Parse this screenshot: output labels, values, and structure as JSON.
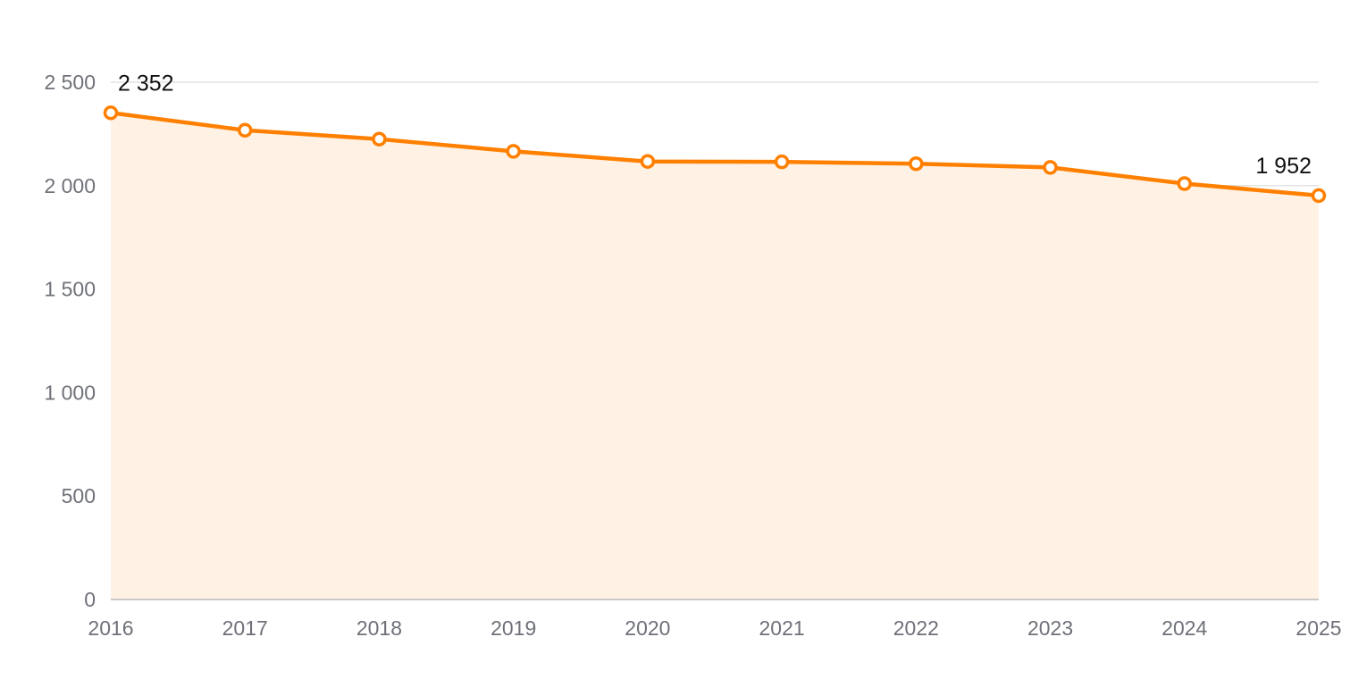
{
  "chart_data": {
    "type": "area",
    "x": [
      "2016",
      "2017",
      "2018",
      "2019",
      "2020",
      "2021",
      "2022",
      "2023",
      "2024",
      "2025"
    ],
    "series": [
      {
        "values": [
          2352,
          2268,
          2225,
          2166,
          2117,
          2115,
          2106,
          2088,
          2010,
          1952
        ]
      }
    ],
    "y_ticks": [
      {
        "value": 0,
        "label": "0"
      },
      {
        "value": 500,
        "label": "500"
      },
      {
        "value": 1000,
        "label": "1 000"
      },
      {
        "value": 1500,
        "label": "1 500"
      },
      {
        "value": 2000,
        "label": "2 000"
      },
      {
        "value": 2500,
        "label": "2 500"
      }
    ],
    "ylim": [
      0,
      2500
    ],
    "data_labels": [
      {
        "index": 0,
        "text": "2 352"
      },
      {
        "index": 9,
        "text": "1 952"
      }
    ],
    "grid": true,
    "legend": "none",
    "title": "",
    "xlabel": "",
    "ylabel": "",
    "colors": {
      "line": "#ff8000",
      "fill": "#fff1e4"
    }
  }
}
